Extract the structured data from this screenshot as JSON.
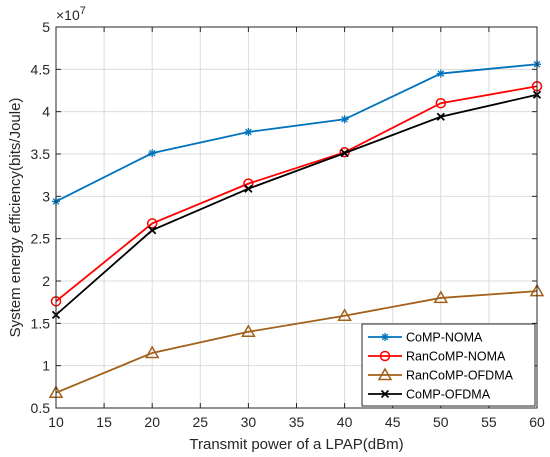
{
  "chart_data": {
    "type": "line",
    "xlabel": "Transmit power of a LPAP(dBm)",
    "ylabel": "System energy efficiency(bits/Joule)",
    "y_multiplier_label": "×10",
    "y_multiplier_exponent": "7",
    "xlim": [
      10,
      60
    ],
    "ylim": [
      0.5,
      5
    ],
    "xticks": [
      10,
      15,
      20,
      25,
      30,
      35,
      40,
      45,
      50,
      55,
      60
    ],
    "yticks": [
      0.5,
      1,
      1.5,
      2,
      2.5,
      3,
      3.5,
      4,
      4.5,
      5
    ],
    "ytick_labels": [
      "0.5",
      "1",
      "1.5",
      "2",
      "2.5",
      "3",
      "3.5",
      "4",
      "4.5",
      "5"
    ],
    "grid": true,
    "legend_position": "bottom-right",
    "x": [
      10,
      20,
      30,
      40,
      50,
      60
    ],
    "series": [
      {
        "name": "CoMP-NOMA",
        "values": [
          2.94,
          3.51,
          3.76,
          3.91,
          4.45,
          4.56
        ],
        "color": "#0072BD",
        "marker": "asterisk"
      },
      {
        "name": "RanCoMP-NOMA",
        "values": [
          1.76,
          2.68,
          3.15,
          3.52,
          4.1,
          4.3
        ],
        "color": "#FF0000",
        "marker": "circle"
      },
      {
        "name": "RanCoMP-OFDMA",
        "values": [
          0.68,
          1.15,
          1.4,
          1.59,
          1.8,
          1.88
        ],
        "color": "#A2601A",
        "marker": "triangle"
      },
      {
        "name": "CoMP-OFDMA",
        "values": [
          1.6,
          2.6,
          3.09,
          3.51,
          3.94,
          4.2
        ],
        "color": "#000000",
        "marker": "x"
      }
    ]
  }
}
